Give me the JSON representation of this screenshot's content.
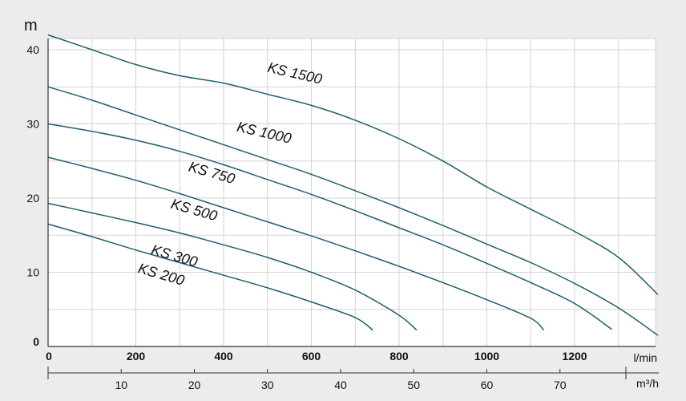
{
  "chart_data": {
    "type": "line",
    "ylabel": "m",
    "x_unit": "l/min",
    "x2_unit": "m³/h",
    "xlim": [
      0,
      1400
    ],
    "ylim": [
      0,
      42
    ],
    "x_ticks": [
      0,
      200,
      400,
      600,
      800,
      1000,
      1200
    ],
    "y_ticks": [
      0,
      10,
      20,
      30,
      40
    ],
    "x2_ticks": [
      10,
      20,
      30,
      40,
      50,
      60,
      70
    ],
    "grid": true,
    "series": [
      {
        "name": "KS 1500",
        "x": [
          0,
          100,
          200,
          300,
          400,
          500,
          600,
          700,
          800,
          900,
          1000,
          1100,
          1200,
          1300,
          1390
        ],
        "y": [
          42,
          40,
          38,
          36.5,
          35.5,
          34,
          32.5,
          30.5,
          28,
          25,
          21.5,
          18.5,
          15.5,
          12,
          7
        ]
      },
      {
        "name": "KS 1000",
        "x": [
          0,
          100,
          200,
          300,
          400,
          500,
          600,
          700,
          800,
          900,
          1000,
          1100,
          1200,
          1300,
          1390
        ],
        "y": [
          35,
          33.2,
          31.2,
          29.2,
          27.2,
          25.2,
          23.2,
          21,
          18.7,
          16.3,
          13.8,
          11.3,
          8.5,
          5.2,
          1.5
        ]
      },
      {
        "name": "KS 750",
        "x": [
          0,
          100,
          200,
          300,
          400,
          500,
          600,
          700,
          800,
          900,
          1000,
          1100,
          1200,
          1285
        ],
        "y": [
          30,
          29,
          27.8,
          26.3,
          24.5,
          22.5,
          20.5,
          18.3,
          16,
          13.7,
          11.2,
          8.6,
          5.8,
          2.3
        ]
      },
      {
        "name": "KS 500",
        "x": [
          0,
          100,
          200,
          300,
          400,
          500,
          600,
          700,
          800,
          900,
          1000,
          1100,
          1130
        ],
        "y": [
          25.5,
          24,
          22.4,
          20.6,
          18.7,
          16.8,
          14.9,
          12.9,
          10.8,
          8.6,
          6.3,
          3.8,
          2.2
        ]
      },
      {
        "name": "KS 300",
        "x": [
          0,
          100,
          200,
          300,
          400,
          500,
          600,
          700,
          800,
          840
        ],
        "y": [
          19.3,
          18,
          16.7,
          15.3,
          13.7,
          12,
          10,
          7.6,
          4.2,
          2.2
        ]
      },
      {
        "name": "KS 200",
        "x": [
          0,
          100,
          200,
          300,
          400,
          500,
          600,
          700,
          740
        ],
        "y": [
          16.5,
          14.8,
          13,
          11.3,
          9.6,
          7.9,
          6,
          3.9,
          2.2
        ]
      }
    ]
  },
  "colors": {
    "curve": "#1c5f6e",
    "grid": "#d3d3d3",
    "plot_bg": "#ffffff",
    "page_bg": "#ececec",
    "axis": "#333333"
  }
}
